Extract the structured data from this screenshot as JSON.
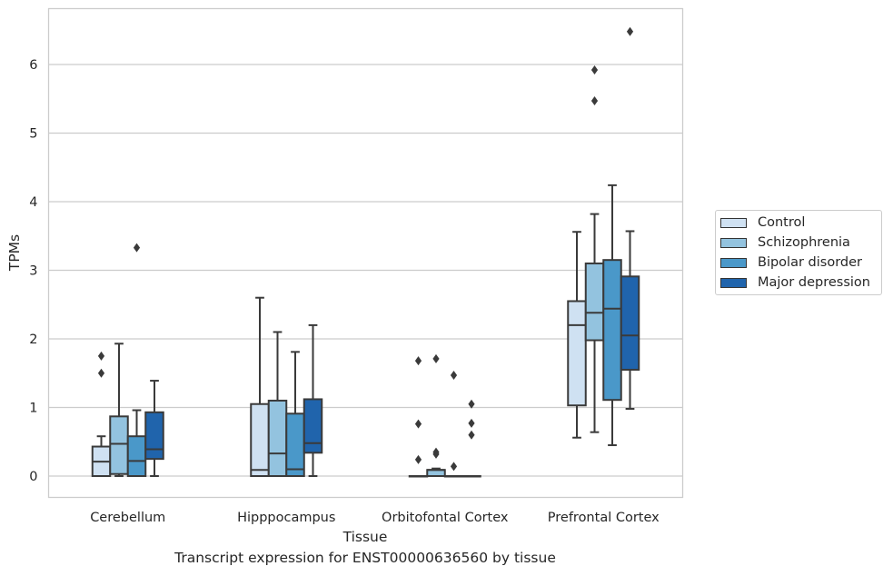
{
  "caption": "Transcript expression for ENST00000636560 by tissue",
  "chart_data": {
    "type": "box",
    "xlabel": "Tissue",
    "ylabel": "TPMs",
    "ylim": [
      -0.32,
      6.82
    ],
    "yticks": [
      0,
      1,
      2,
      3,
      4,
      5,
      6
    ],
    "grid": "horizontal",
    "legend_position": "center-right",
    "categories": [
      "Cerebellum",
      "Hipppocampus",
      "Orbitofontal Cortex",
      "Prefrontal Cortex"
    ],
    "series": [
      {
        "name": "Control",
        "color": "#cfe1f2",
        "boxes": [
          {
            "whislo": 0.0,
            "q1": 0.0,
            "median": 0.21,
            "q3": 0.43,
            "whishi": 0.58,
            "fliers": [
              1.5,
              1.75
            ]
          },
          {
            "whislo": 0.0,
            "q1": 0.0,
            "median": 0.09,
            "q3": 1.05,
            "whishi": 2.6,
            "fliers": []
          },
          {
            "whislo": 0.0,
            "q1": 0.0,
            "median": 0.0,
            "q3": 0.0,
            "whishi": 0.0,
            "fliers": [
              0.24,
              0.76,
              1.68
            ]
          },
          {
            "whislo": 0.56,
            "q1": 1.03,
            "median": 2.2,
            "q3": 2.55,
            "whishi": 3.56,
            "fliers": []
          }
        ]
      },
      {
        "name": "Schizophrenia",
        "color": "#93c3df",
        "boxes": [
          {
            "whislo": 0.0,
            "q1": 0.03,
            "median": 0.47,
            "q3": 0.87,
            "whishi": 1.93,
            "fliers": []
          },
          {
            "whislo": 0.0,
            "q1": 0.0,
            "median": 0.33,
            "q3": 1.1,
            "whishi": 2.1,
            "fliers": []
          },
          {
            "whislo": 0.0,
            "q1": 0.0,
            "median": 0.09,
            "q3": 0.09,
            "whishi": 0.11,
            "fliers": [
              0.32,
              0.35,
              1.71
            ]
          },
          {
            "whislo": 0.64,
            "q1": 1.98,
            "median": 2.38,
            "q3": 3.1,
            "whishi": 3.82,
            "fliers": [
              5.47,
              5.92
            ]
          }
        ]
      },
      {
        "name": "Bipolar disorder",
        "color": "#4a98c9",
        "boxes": [
          {
            "whislo": 0.0,
            "q1": 0.0,
            "median": 0.22,
            "q3": 0.58,
            "whishi": 0.96,
            "fliers": [
              3.33
            ]
          },
          {
            "whislo": 0.0,
            "q1": 0.0,
            "median": 0.1,
            "q3": 0.91,
            "whishi": 1.81,
            "fliers": []
          },
          {
            "whislo": 0.0,
            "q1": 0.0,
            "median": 0.0,
            "q3": 0.0,
            "whishi": 0.0,
            "fliers": [
              0.14,
              1.47
            ]
          },
          {
            "whislo": 0.45,
            "q1": 1.11,
            "median": 2.44,
            "q3": 3.15,
            "whishi": 4.24,
            "fliers": []
          }
        ]
      },
      {
        "name": "Major depression",
        "color": "#2064ac",
        "boxes": [
          {
            "whislo": 0.0,
            "q1": 0.25,
            "median": 0.39,
            "q3": 0.93,
            "whishi": 1.39,
            "fliers": []
          },
          {
            "whislo": 0.0,
            "q1": 0.34,
            "median": 0.48,
            "q3": 1.12,
            "whishi": 2.2,
            "fliers": []
          },
          {
            "whislo": 0.0,
            "q1": 0.0,
            "median": 0.0,
            "q3": 0.0,
            "whishi": 0.0,
            "fliers": [
              0.6,
              0.77,
              1.05
            ]
          },
          {
            "whislo": 0.98,
            "q1": 1.55,
            "median": 2.05,
            "q3": 2.91,
            "whishi": 3.57,
            "fliers": [
              6.48
            ]
          }
        ]
      }
    ]
  }
}
